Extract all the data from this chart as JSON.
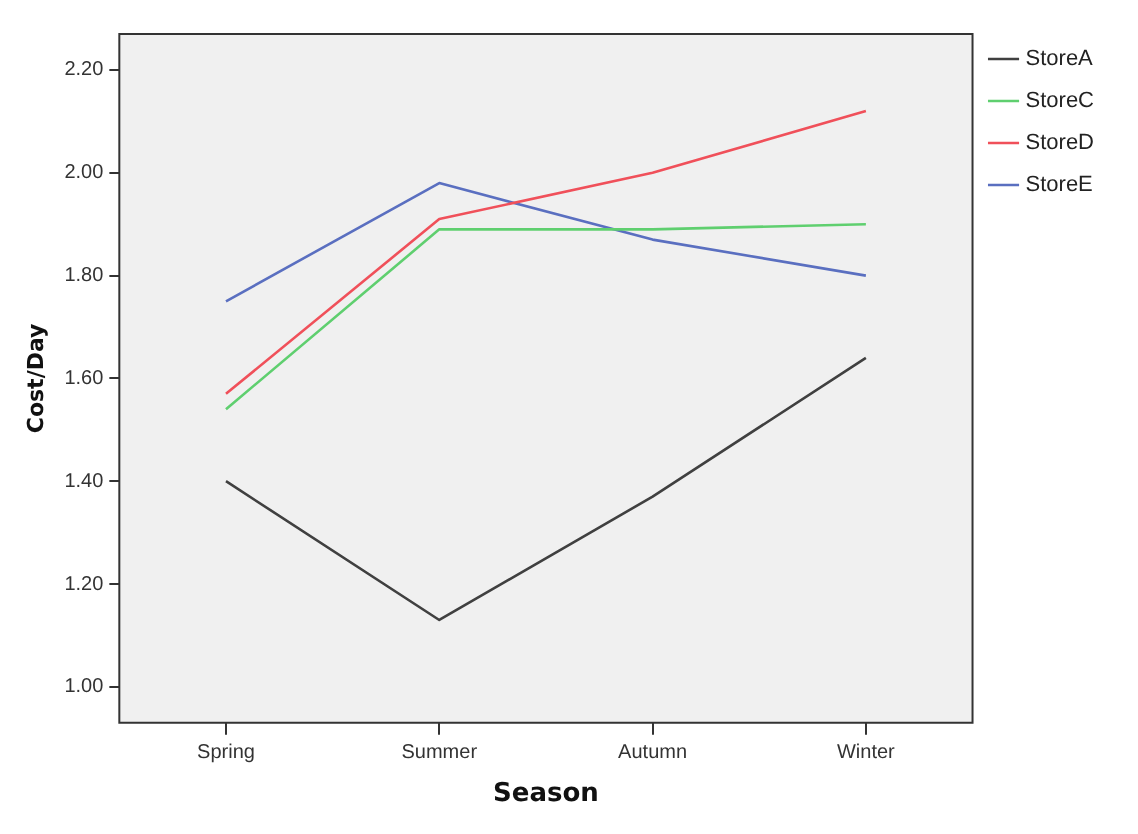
{
  "chart_data": {
    "type": "line",
    "xlabel": "Season",
    "ylabel": "Cost/Day",
    "categories": [
      "Spring",
      "Summer",
      "Autumn",
      "Winter"
    ],
    "series": [
      {
        "name": "StoreA",
        "color": "#404040",
        "values": [
          1.4,
          1.13,
          1.37,
          1.64
        ]
      },
      {
        "name": "StoreC",
        "color": "#5fcf6f",
        "values": [
          1.54,
          1.89,
          1.89,
          1.9
        ]
      },
      {
        "name": "StoreD",
        "color": "#f0505a",
        "values": [
          1.57,
          1.91,
          2.0,
          2.12
        ]
      },
      {
        "name": "StoreE",
        "color": "#5a6fc0",
        "values": [
          1.75,
          1.98,
          1.87,
          1.8
        ]
      }
    ],
    "ylim": [
      0.93,
      2.27
    ],
    "yticks": [
      {
        "value": 1,
        "label": "1.00"
      },
      {
        "value": 1.2,
        "label": "1.20"
      },
      {
        "value": 1.4,
        "label": "1.40"
      },
      {
        "value": 1.6,
        "label": "1.60"
      },
      {
        "value": 1.8,
        "label": "1.80"
      },
      {
        "value": 2,
        "label": "2.00"
      },
      {
        "value": 2.2,
        "label": "2.20"
      }
    ],
    "grid": false,
    "legend": "top right",
    "marker": "none",
    "line_style": "solid"
  }
}
